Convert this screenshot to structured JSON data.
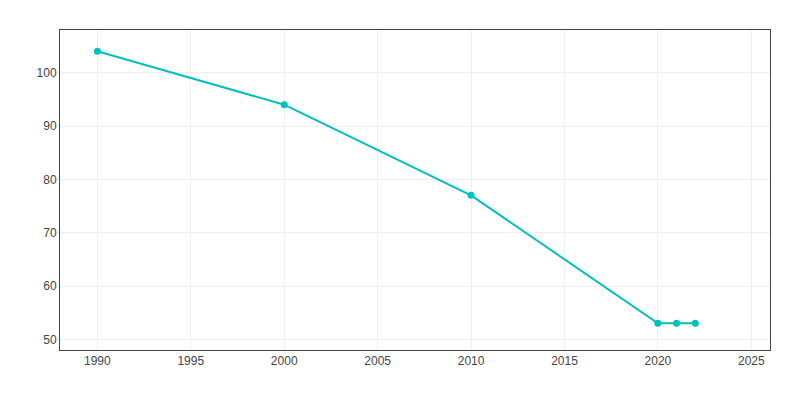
{
  "chart_data": {
    "type": "line",
    "x": [
      1990,
      2000,
      2010,
      2020,
      2021,
      2022
    ],
    "values": [
      104,
      94,
      77,
      53,
      53,
      53
    ],
    "color": "#00BFBF",
    "marker": "circle",
    "xlim": [
      1988,
      2026
    ],
    "ylim": [
      48,
      108
    ],
    "xticks": [
      1990,
      1995,
      2000,
      2005,
      2010,
      2015,
      2020,
      2025
    ],
    "yticks": [
      50,
      60,
      70,
      80,
      90,
      100
    ],
    "grid": true
  }
}
